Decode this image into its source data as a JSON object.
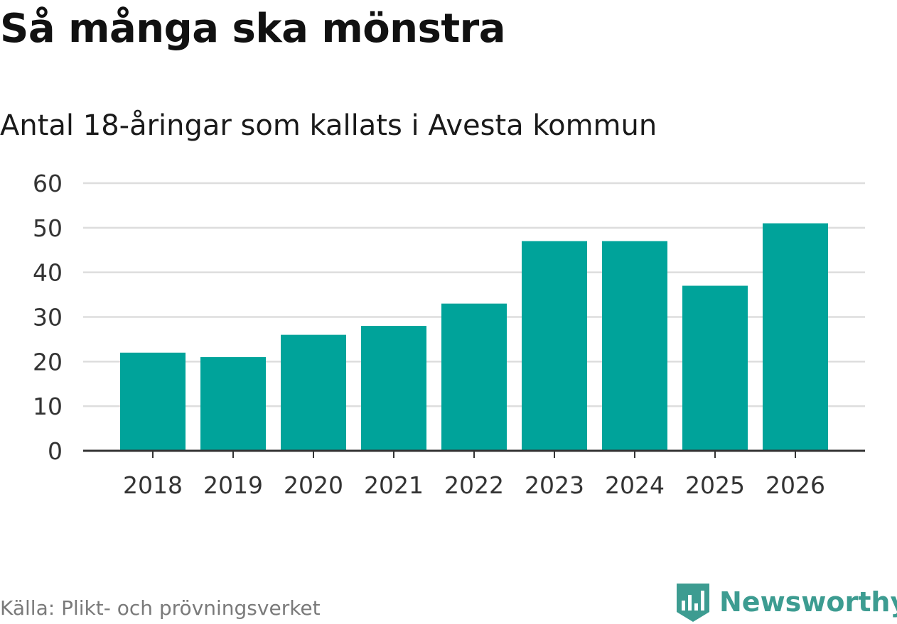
{
  "title": "Så många ska mönstra",
  "subtitle": "Antal 18-åringar som kallats i Avesta kommun",
  "source": "Källa: Plikt- och prövningsverket",
  "brand": {
    "name": "Newsworthy",
    "icon": "bar-chart-badge-icon",
    "color": "#3d9c91"
  },
  "colors": {
    "bar": "#00a39a",
    "grid": "#dddddd",
    "baseline": "#333333"
  },
  "chart_data": {
    "type": "bar",
    "title": "Så många ska mönstra",
    "subtitle": "Antal 18-åringar som kallats i Avesta kommun",
    "xlabel": "",
    "ylabel": "",
    "categories": [
      "2018",
      "2019",
      "2020",
      "2021",
      "2022",
      "2023",
      "2024",
      "2025",
      "2026"
    ],
    "values": [
      22,
      21,
      26,
      28,
      33,
      47,
      47,
      37,
      51
    ],
    "ylim": [
      0,
      60
    ],
    "yticks": [
      0,
      10,
      20,
      30,
      40,
      50,
      60
    ],
    "grid": true
  }
}
